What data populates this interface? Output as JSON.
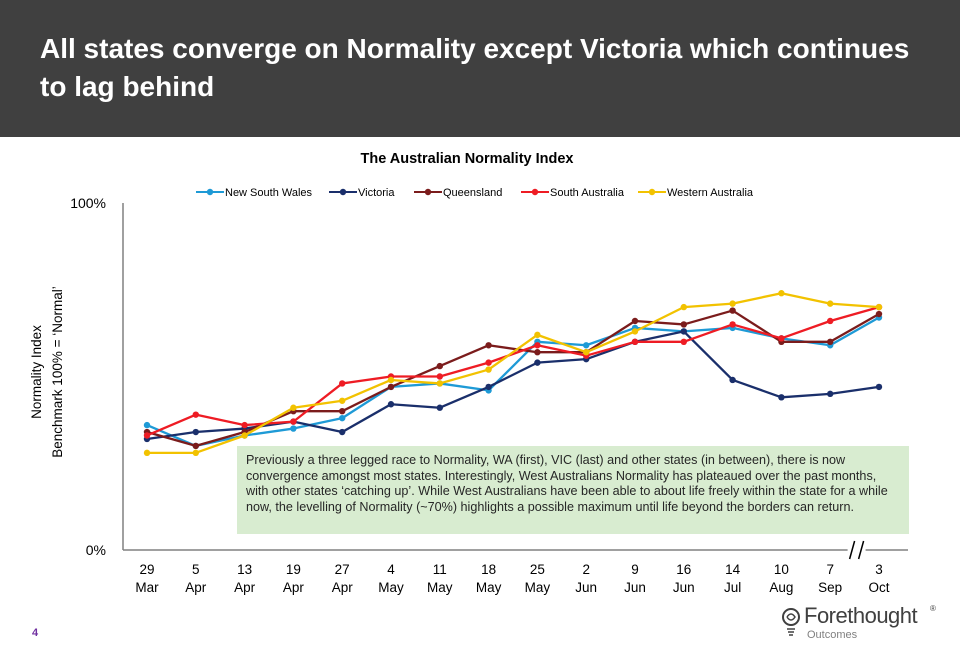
{
  "slide": {
    "title": "All states converge on Normality except Victoria which continues to lag behind",
    "page_number": "4",
    "note": "Previously a three legged race to Normality, WA (first), VIC (last) and other states (in between), there is now convergence amongst most states.  Interestingly, West Australians Normality has plateaued over the past months, with other states ‘catching up’.  While West Australians have been able to about life freely within the state for a while now, the levelling of Normality (~70%) highlights a possible maximum until life beyond the borders can return.",
    "logo": {
      "name": "Forethought",
      "reg": "®",
      "sub": "Outcomes"
    }
  },
  "chart_data": {
    "type": "line",
    "title": "The Australian Normality Index",
    "ylabel_line1": "Normality Index",
    "ylabel_line2": "Benchmark 100% = ‘Normal’",
    "ylim": [
      0,
      100
    ],
    "y_ticks": [
      {
        "value": 0,
        "label": "0%"
      },
      {
        "value": 100,
        "label": "100%"
      }
    ],
    "grid": false,
    "legend_position": "top",
    "axis_break_after_index": 15,
    "categories": [
      [
        "29",
        "Mar"
      ],
      [
        "5",
        "Apr"
      ],
      [
        "13",
        "Apr"
      ],
      [
        "19",
        "Apr"
      ],
      [
        "27",
        "Apr"
      ],
      [
        "4",
        "May"
      ],
      [
        "11",
        "May"
      ],
      [
        "18",
        "May"
      ],
      [
        "25",
        "May"
      ],
      [
        "2",
        "Jun"
      ],
      [
        "9",
        "Jun"
      ],
      [
        "16",
        "Jun"
      ],
      [
        "14",
        "Jul"
      ],
      [
        "10",
        "Aug"
      ],
      [
        "7",
        "Sep"
      ],
      [
        "3",
        "Oct"
      ]
    ],
    "series": [
      {
        "name": "New South Wales",
        "color": "#1e9ad6",
        "values": [
          36,
          30,
          33,
          35,
          38,
          47,
          48,
          46,
          60,
          59,
          64,
          63,
          64,
          61,
          59,
          67
        ]
      },
      {
        "name": "Victoria",
        "color": "#1a2f6b",
        "values": [
          32,
          34,
          35,
          37,
          34,
          42,
          41,
          47,
          54,
          55,
          60,
          63,
          49,
          44,
          45,
          47
        ]
      },
      {
        "name": "Queensland",
        "color": "#7b1c1c",
        "values": [
          34,
          30,
          34,
          40,
          40,
          47,
          53,
          59,
          57,
          57,
          66,
          65,
          69,
          60,
          60,
          68
        ]
      },
      {
        "name": "South Australia",
        "color": "#ee1c24",
        "values": [
          33,
          39,
          36,
          37,
          48,
          50,
          50,
          54,
          59,
          56,
          60,
          60,
          65,
          61,
          66,
          70
        ]
      },
      {
        "name": "Western Australia",
        "color": "#f2c200",
        "values": [
          28,
          28,
          33,
          41,
          43,
          49,
          48,
          52,
          62,
          57,
          63,
          70,
          71,
          74,
          71,
          70
        ]
      }
    ]
  }
}
